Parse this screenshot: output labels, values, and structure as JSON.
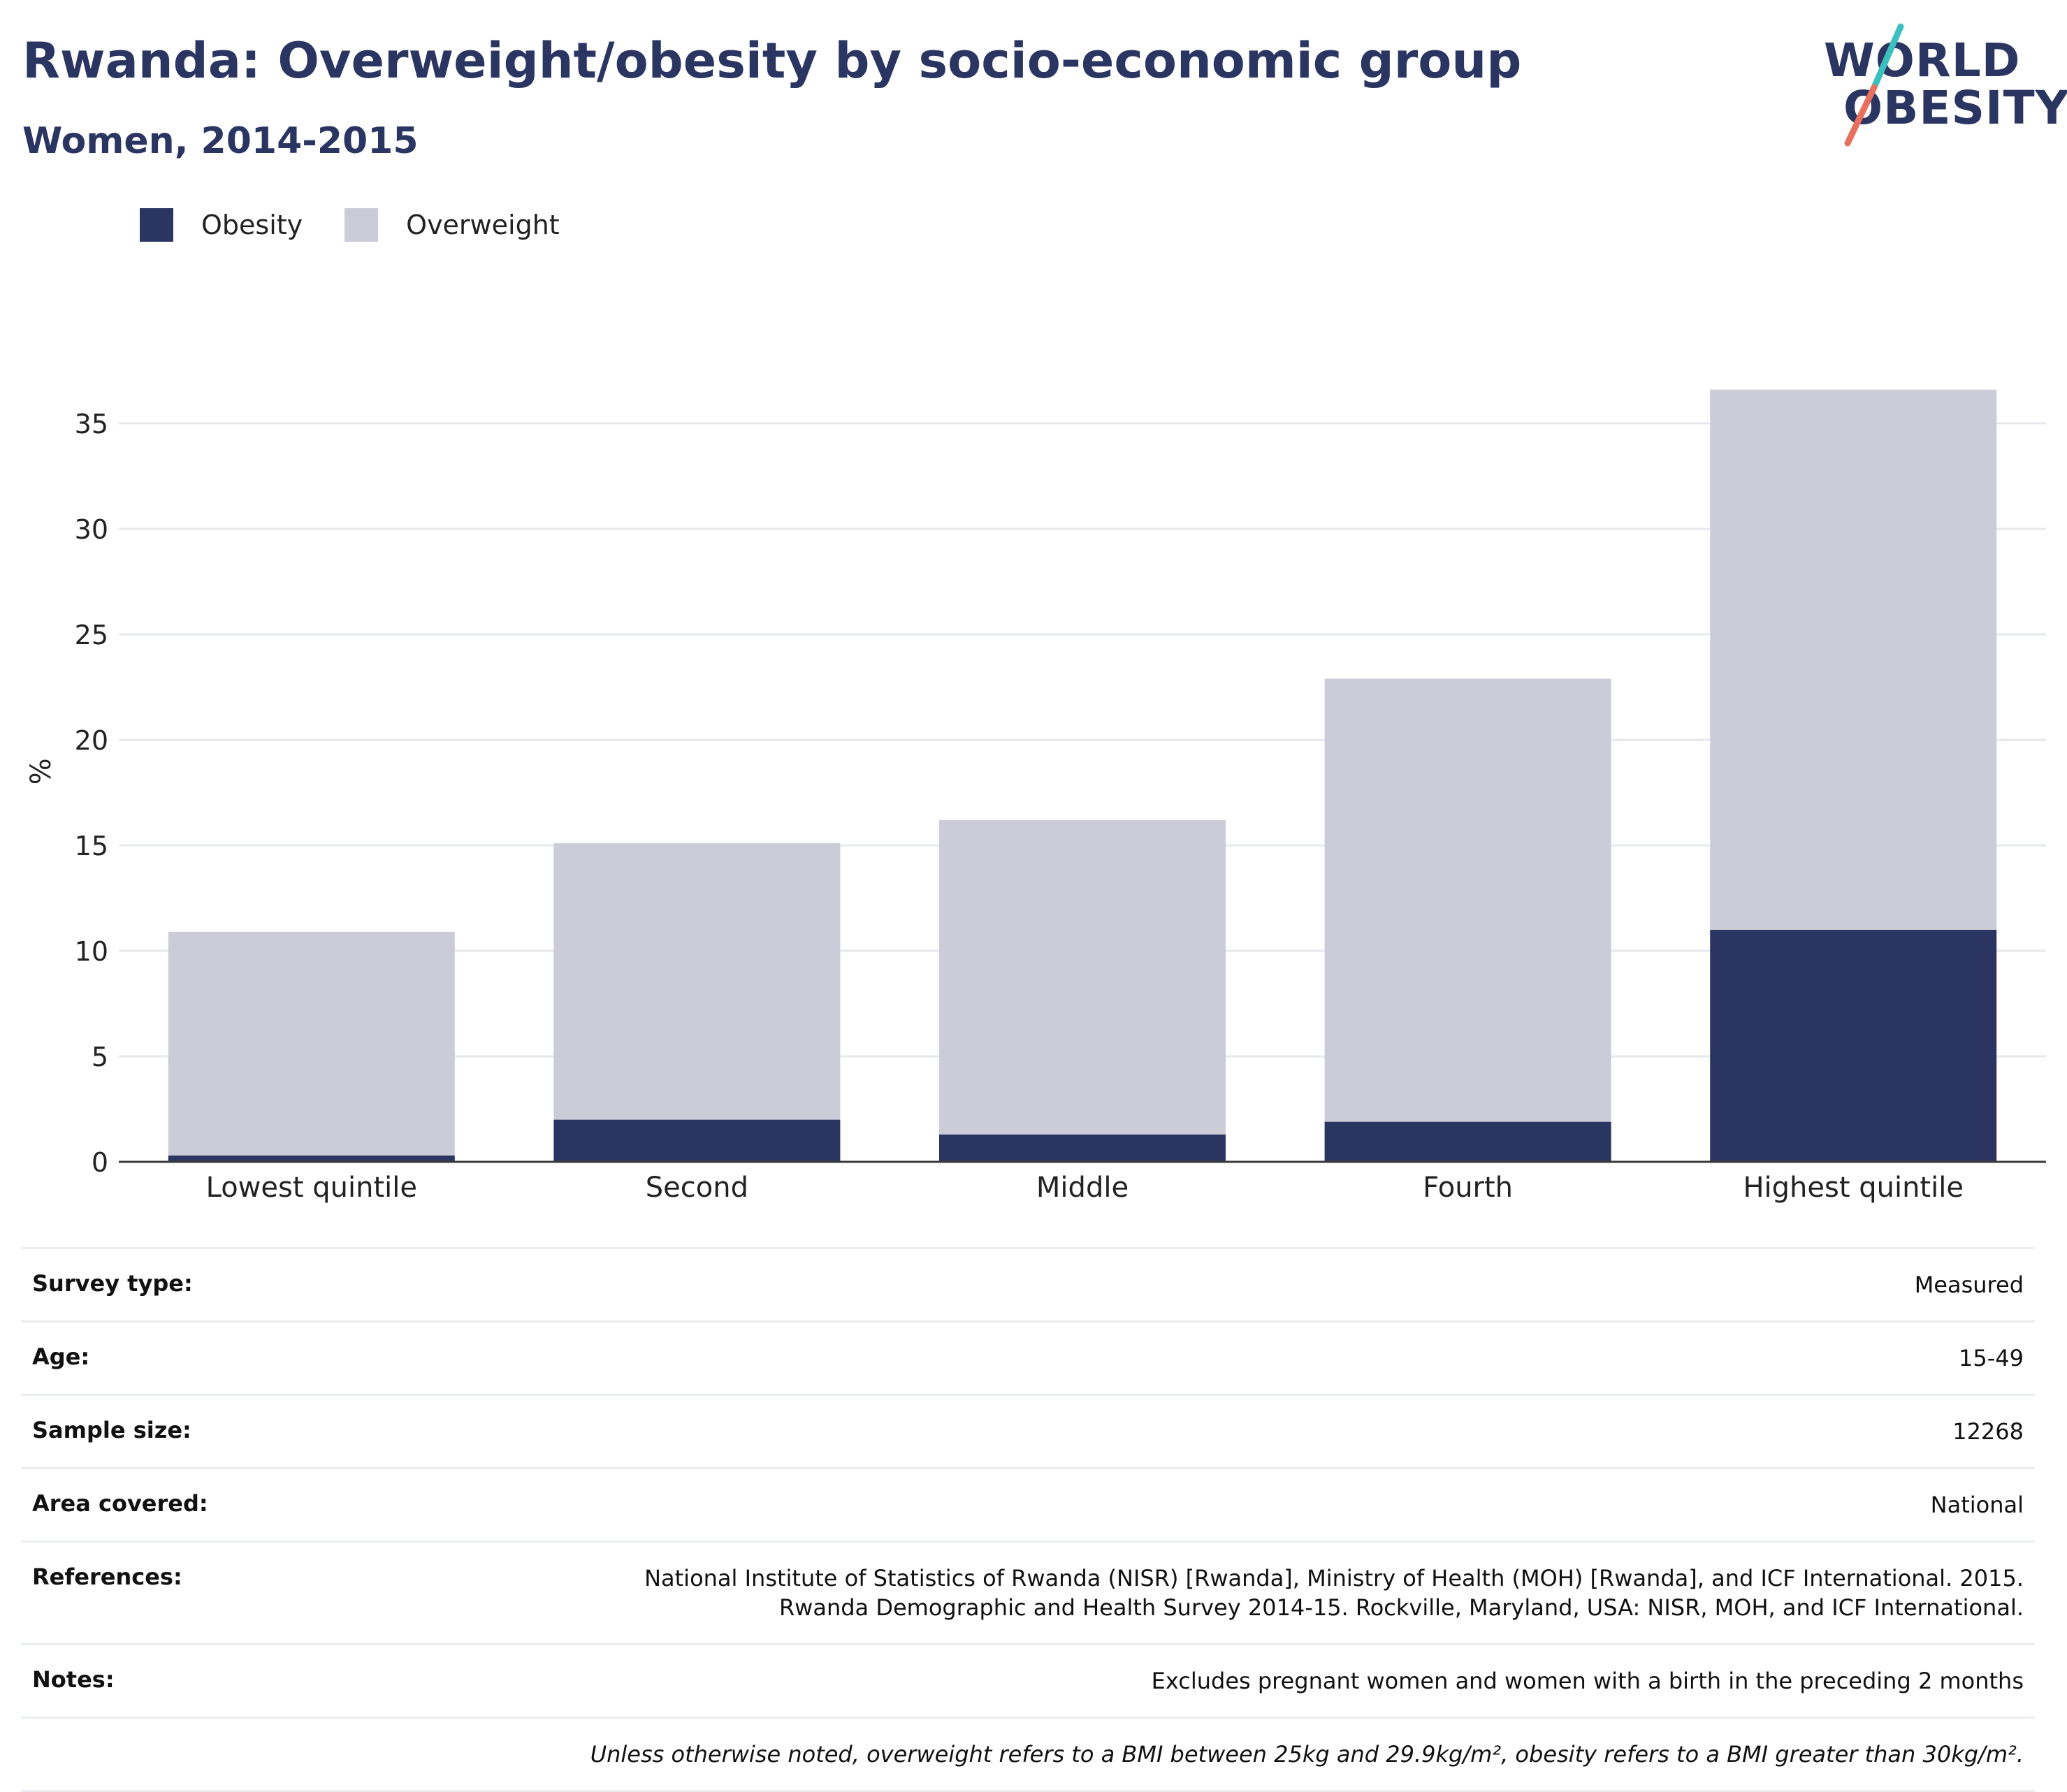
{
  "header": {
    "title": "Rwanda: Overweight/obesity by socio-economic group",
    "subtitle": "Women, 2014-2015"
  },
  "logo": {
    "line1": "WORLD",
    "line2": "OBESITY",
    "slash_top_color": "#3bbfbf",
    "slash_bottom_color": "#e8705f"
  },
  "legend": [
    {
      "label": "Obesity",
      "color": "#2b3561"
    },
    {
      "label": "Overweight",
      "color": "#cbccd7"
    }
  ],
  "chart_data": {
    "type": "bar",
    "stacked": true,
    "categories": [
      "Lowest quintile",
      "Second",
      "Middle",
      "Fourth",
      "Highest quintile"
    ],
    "series": [
      {
        "name": "Obesity",
        "color": "#2b3561",
        "values": [
          0.3,
          2.0,
          1.3,
          1.9,
          11.0
        ]
      },
      {
        "name": "Overweight",
        "color": "#cbccd7",
        "values": [
          10.6,
          13.1,
          14.9,
          21.0,
          25.6
        ]
      }
    ],
    "ylabel": "%",
    "ylim": [
      0,
      37
    ],
    "yticks": [
      0,
      5,
      10,
      15,
      20,
      25,
      30,
      35
    ],
    "grid": true,
    "legend_position": "top-left"
  },
  "details": [
    {
      "key": "Survey type:",
      "value": "Measured"
    },
    {
      "key": "Age:",
      "value": "15-49"
    },
    {
      "key": "Sample size:",
      "value": "12268"
    },
    {
      "key": "Area covered:",
      "value": "National"
    },
    {
      "key": "References:",
      "value": "National Institute of Statistics of Rwanda (NISR) [Rwanda], Ministry of Health (MOH) [Rwanda], and ICF International. 2015. Rwanda Demographic and Health Survey 2014-15. Rockville, Maryland, USA: NISR, MOH, and ICF International."
    },
    {
      "key": "Notes:",
      "value": "Excludes pregnant women and women with a birth in the preceding 2 months"
    }
  ],
  "footnote": "Unless otherwise noted, overweight refers to a BMI between 25kg and 29.9kg/m², obesity refers to a BMI greater than 30kg/m²."
}
